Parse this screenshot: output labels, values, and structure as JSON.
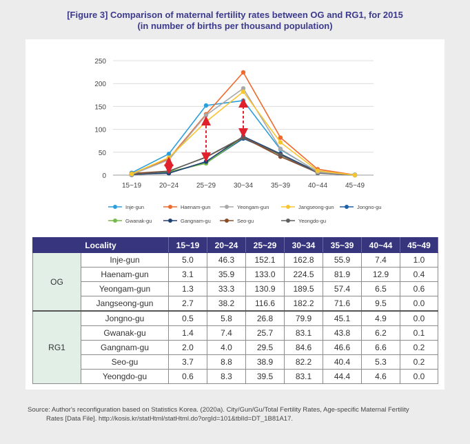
{
  "title_line1": "[Figure 3] Comparison of maternal fertility rates between OG and RG1, for 2015",
  "title_line2": "(in number of births per thousand population)",
  "chart_data": {
    "type": "line",
    "categories": [
      "15~19",
      "20~24",
      "25~29",
      "30~34",
      "35~39",
      "40~44",
      "45~49"
    ],
    "ylim": [
      0,
      250
    ],
    "yticks": [
      0,
      50,
      100,
      150,
      200,
      250
    ],
    "legend_position": "bottom",
    "series": [
      {
        "name": "Inje-gun",
        "color": "#2c9fdb",
        "values": [
          5.0,
          46.3,
          152.1,
          162.8,
          55.9,
          7.4,
          1.0
        ]
      },
      {
        "name": "Haenam-gun",
        "color": "#ee6a2c",
        "values": [
          3.1,
          35.9,
          133.0,
          224.5,
          81.9,
          12.9,
          0.4
        ]
      },
      {
        "name": "Yeongam-gun",
        "color": "#a9a9a9",
        "values": [
          1.3,
          33.3,
          130.9,
          189.5,
          57.4,
          6.5,
          0.6
        ]
      },
      {
        "name": "Jangseong-gun",
        "color": "#f7c52f",
        "values": [
          2.7,
          38.2,
          116.6,
          182.2,
          71.6,
          9.5,
          0.0
        ]
      },
      {
        "name": "Jongno-gu",
        "color": "#1f5fa6",
        "values": [
          0.5,
          5.8,
          26.8,
          79.9,
          45.1,
          4.9,
          0.0
        ]
      },
      {
        "name": "Gwanak-gu",
        "color": "#74b94a",
        "values": [
          1.4,
          7.4,
          25.7,
          83.1,
          43.8,
          6.2,
          0.1
        ]
      },
      {
        "name": "Gangnam-gu",
        "color": "#1f3f74",
        "values": [
          2.0,
          4.0,
          29.5,
          84.6,
          46.6,
          6.6,
          0.2
        ]
      },
      {
        "name": "Seo-gu",
        "color": "#8a4a28",
        "values": [
          3.7,
          8.8,
          38.9,
          82.2,
          40.4,
          5.3,
          0.2
        ]
      },
      {
        "name": "Yeongdo-gu",
        "color": "#5f5f5f",
        "values": [
          0.6,
          8.3,
          39.5,
          83.1,
          44.4,
          4.6,
          0.0
        ]
      }
    ],
    "annotation_color": "#e0202a"
  },
  "table": {
    "headers": [
      "Locality",
      "15~19",
      "20~24",
      "25~29",
      "30~34",
      "35~39",
      "40~44",
      "45~49"
    ],
    "groups": [
      {
        "label": "OG",
        "rows": [
          [
            "Inje-gun",
            "5.0",
            "46.3",
            "152.1",
            "162.8",
            "55.9",
            "7.4",
            "1.0"
          ],
          [
            "Haenam-gun",
            "3.1",
            "35.9",
            "133.0",
            "224.5",
            "81.9",
            "12.9",
            "0.4"
          ],
          [
            "Yeongam-gun",
            "1.3",
            "33.3",
            "130.9",
            "189.5",
            "57.4",
            "6.5",
            "0.6"
          ],
          [
            "Jangseong-gun",
            "2.7",
            "38.2",
            "116.6",
            "182.2",
            "71.6",
            "9.5",
            "0.0"
          ]
        ]
      },
      {
        "label": "RG1",
        "rows": [
          [
            "Jongno-gu",
            "0.5",
            "5.8",
            "26.8",
            "79.9",
            "45.1",
            "4.9",
            "0.0"
          ],
          [
            "Gwanak-gu",
            "1.4",
            "7.4",
            "25.7",
            "83.1",
            "43.8",
            "6.2",
            "0.1"
          ],
          [
            "Gangnam-gu",
            "2.0",
            "4.0",
            "29.5",
            "84.6",
            "46.6",
            "6.6",
            "0.2"
          ],
          [
            "Seo-gu",
            "3.7",
            "8.8",
            "38.9",
            "82.2",
            "40.4",
            "5.3",
            "0.2"
          ],
          [
            "Yeongdo-gu",
            "0.6",
            "8.3",
            "39.5",
            "83.1",
            "44.4",
            "4.6",
            "0.0"
          ]
        ]
      }
    ]
  },
  "source_line1": "Source: Author's reconfiguration based on Statistics Korea. (2020a). City/Gun/Gu/Total Fertility Rates, Age-specific Maternal Fertility",
  "source_line2": "Rates [Data File]. http://kosis.kr/statHtml/statHtml.do?orgId=101&tblId=DT_1B81A17."
}
